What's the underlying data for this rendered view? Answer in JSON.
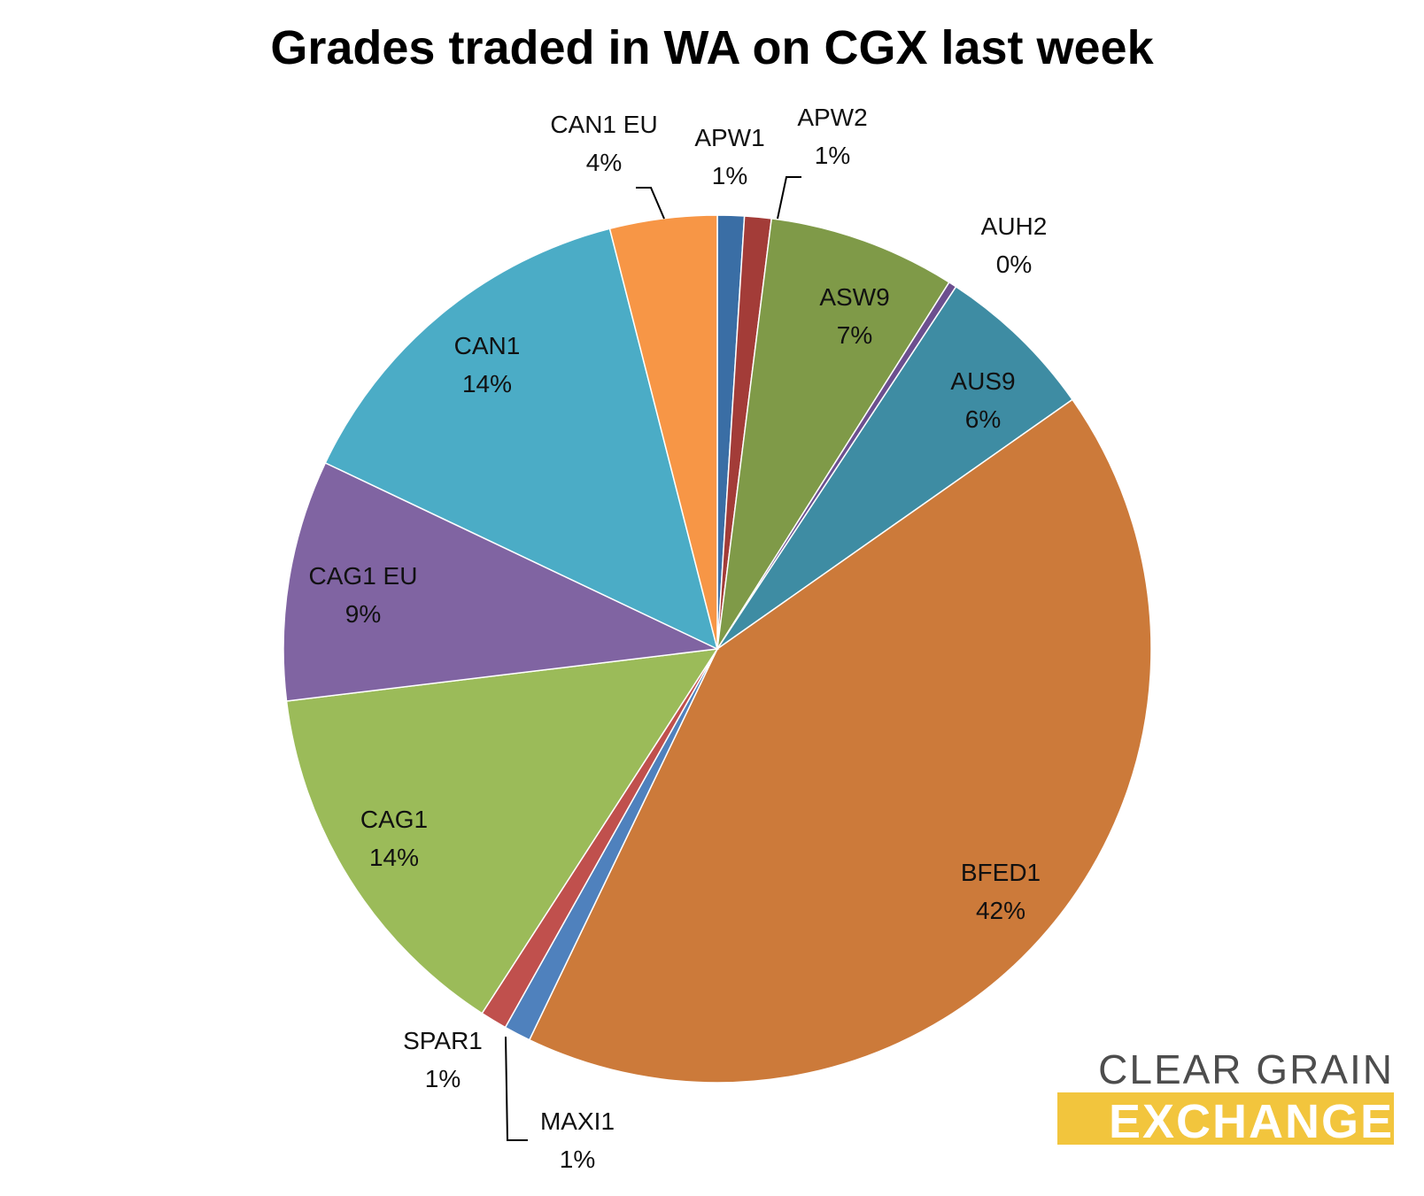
{
  "chart_data": {
    "type": "pie",
    "title": "Grades traded in WA on CGX last week",
    "slices": [
      {
        "label": "APW1",
        "value": 1,
        "value_label": "1%",
        "color": "#3a6ea5"
      },
      {
        "label": "APW2",
        "value": 1,
        "value_label": "1%",
        "color": "#a33c38"
      },
      {
        "label": "ASW9",
        "value": 7,
        "value_label": "7%",
        "color": "#7f9a48"
      },
      {
        "label": "AUH2",
        "value": 0.3,
        "value_label": "0%",
        "color": "#6c4f8f"
      },
      {
        "label": "AUS9",
        "value": 6,
        "value_label": "6%",
        "color": "#3e8ca3"
      },
      {
        "label": "BFED1",
        "value": 42,
        "value_label": "42%",
        "color": "#cc7a3a"
      },
      {
        "label": "MAXI1",
        "value": 1,
        "value_label": "1%",
        "color": "#4f81bd"
      },
      {
        "label": "SPAR1",
        "value": 1,
        "value_label": "1%",
        "color": "#c0504d"
      },
      {
        "label": "CAG1",
        "value": 14,
        "value_label": "14%",
        "color": "#9bbb59"
      },
      {
        "label": "CAG1 EU",
        "value": 9,
        "value_label": "9%",
        "color": "#8064a2"
      },
      {
        "label": "CAN1",
        "value": 14,
        "value_label": "14%",
        "color": "#4bacc6"
      },
      {
        "label": "CAN1 EU",
        "value": 4,
        "value_label": "4%",
        "color": "#f79646"
      }
    ]
  },
  "logo": {
    "line1": "CLEAR GRAIN",
    "line2": "EXCHANGE"
  }
}
